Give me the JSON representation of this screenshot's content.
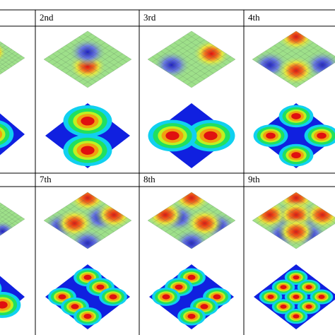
{
  "headers": [
    [
      "2nd",
      "3rd",
      "4th"
    ],
    [
      "7th",
      "8th",
      "9th"
    ]
  ]
}
